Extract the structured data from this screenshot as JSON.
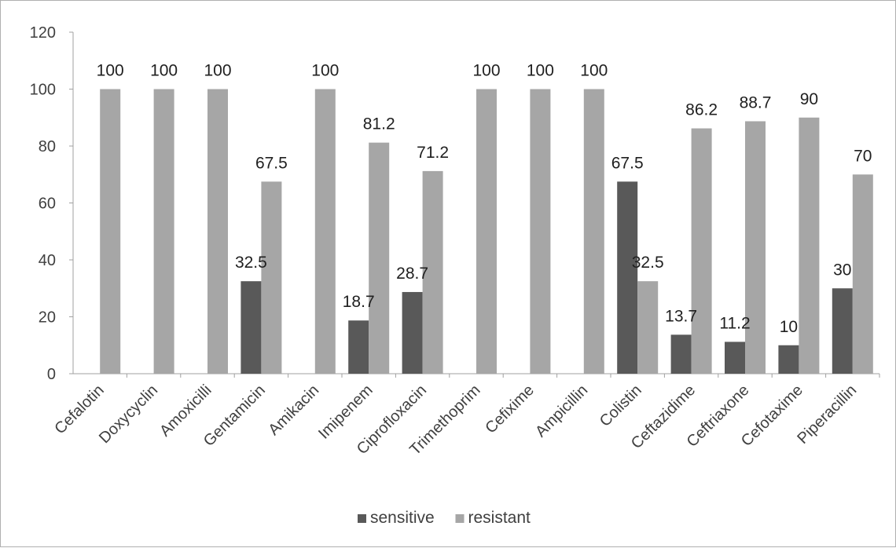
{
  "chart_data": {
    "type": "bar",
    "title": "",
    "xlabel": "",
    "ylabel": "",
    "ylim": [
      0,
      120
    ],
    "yticks": [
      0,
      20,
      40,
      60,
      80,
      100,
      120
    ],
    "grid": false,
    "legend_position": "bottom",
    "categories": [
      "Cefalotin",
      "Doxycyclin",
      "Amoxicilli",
      "Gentamicin",
      "Amikacin",
      "Imipenem",
      "Ciprofloxacin",
      "Trimethoprim",
      "Cefixime",
      "Ampicillin",
      "Colistin",
      "Ceftazidime",
      "Ceftriaxone",
      "Cefotaxime",
      "Piperacillin"
    ],
    "series": [
      {
        "name": "sensitive",
        "color": "#595959",
        "values": [
          null,
          null,
          null,
          32.5,
          null,
          18.7,
          28.7,
          null,
          null,
          null,
          67.5,
          13.7,
          11.2,
          10,
          30
        ],
        "labels": [
          "",
          "",
          "",
          "32.5",
          "",
          "18.7",
          "28.7",
          "",
          "",
          "",
          "67.5",
          "13.7",
          "11.2",
          "10",
          "30"
        ]
      },
      {
        "name": "resistant",
        "color": "#a6a6a6",
        "values": [
          100,
          100,
          100,
          67.5,
          100,
          81.2,
          71.2,
          100,
          100,
          100,
          32.5,
          86.2,
          88.7,
          90,
          70
        ],
        "labels": [
          "100",
          "100",
          "100",
          "67.5",
          "100",
          "81.2",
          "71.2",
          "100",
          "100",
          "100",
          "32.5",
          "86.2",
          "88.7",
          "90",
          "70"
        ]
      }
    ]
  }
}
